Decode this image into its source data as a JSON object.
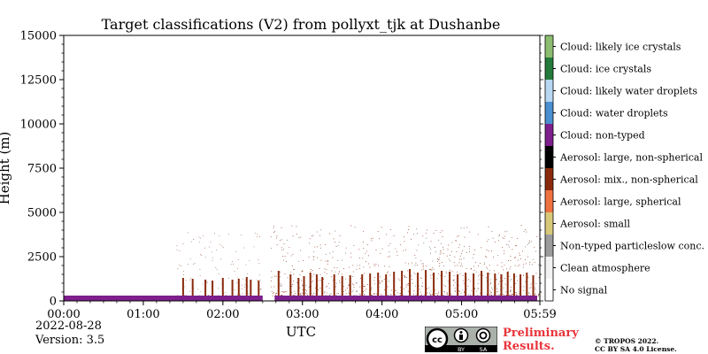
{
  "chart_data": {
    "type": "heatmap",
    "title": "Target classifications (V2) from pollyxt_tjk at Dushanbe",
    "xlabel": "UTC",
    "ylabel": "Height (m)",
    "xlim_hours": [
      0,
      5.9833
    ],
    "ylim": [
      0,
      15000
    ],
    "x_ticks": [
      {
        "value": 0,
        "label": "00:00"
      },
      {
        "value": 1,
        "label": "01:00"
      },
      {
        "value": 2,
        "label": "02:00"
      },
      {
        "value": 3,
        "label": "03:00"
      },
      {
        "value": 4,
        "label": "04:00"
      },
      {
        "value": 5,
        "label": "05:00"
      },
      {
        "value": 5.9833,
        "label": "05:59"
      }
    ],
    "y_ticks": [
      {
        "value": 0,
        "label": "0"
      },
      {
        "value": 2500,
        "label": "2500"
      },
      {
        "value": 5000,
        "label": "5000"
      },
      {
        "value": 7500,
        "label": "7500"
      },
      {
        "value": 10000,
        "label": "10000"
      },
      {
        "value": 12500,
        "label": "12500"
      },
      {
        "value": 15000,
        "label": "15000"
      }
    ],
    "classes": [
      {
        "label": "No signal",
        "color": "#ffffff"
      },
      {
        "label": "Clean atmosphere",
        "color": "#f2f2f2"
      },
      {
        "label": "Non-typed particleslow conc.",
        "color": "#9b9b9b"
      },
      {
        "label": "Aerosol: small",
        "color": "#d8c97a"
      },
      {
        "label": "Aerosol: large, spherical",
        "color": "#ee7240"
      },
      {
        "label": "Aerosol: mix., non-spherical",
        "color": "#8a2a0c"
      },
      {
        "label": "Aerosol: large, non-spherical",
        "color": "#000000"
      },
      {
        "label": "Cloud: non-typed",
        "color": "#7d1f8c"
      },
      {
        "label": "Cloud: water droplets",
        "color": "#4a8fd0"
      },
      {
        "label": "Cloud: likely water droplets",
        "color": "#b7d7f2"
      },
      {
        "label": "Cloud: ice crystals",
        "color": "#237a3a"
      },
      {
        "label": "Cloud: likely ice crystals",
        "color": "#8cbd70"
      }
    ],
    "layers": [
      {
        "class": "Cloud: non-typed",
        "from_hours": 0.0,
        "to_hours": 2.5,
        "base_m": 0,
        "top_m": 300
      },
      {
        "class": "Cloud: non-typed",
        "from_hours": 2.65,
        "to_hours": 5.95,
        "base_m": 0,
        "top_m": 300
      }
    ],
    "aerosol_columns": [
      {
        "class": "Aerosol: mix., non-spherical",
        "hours": 1.5,
        "top_m": 1300
      },
      {
        "class": "Aerosol: mix., non-spherical",
        "hours": 1.62,
        "top_m": 1250
      },
      {
        "class": "Aerosol: mix., non-spherical",
        "hours": 1.78,
        "top_m": 1200
      },
      {
        "class": "Aerosol: mix., non-spherical",
        "hours": 1.87,
        "top_m": 1150
      },
      {
        "class": "Aerosol: mix., non-spherical",
        "hours": 2.0,
        "top_m": 1300
      },
      {
        "class": "Aerosol: mix., non-spherical",
        "hours": 2.12,
        "top_m": 1200
      },
      {
        "class": "Aerosol: mix., non-spherical",
        "hours": 2.2,
        "top_m": 1250
      },
      {
        "class": "Aerosol: mix., non-spherical",
        "hours": 2.3,
        "top_m": 1350
      },
      {
        "class": "Aerosol: mix., non-spherical",
        "hours": 2.35,
        "top_m": 1200
      },
      {
        "class": "Aerosol: mix., non-spherical",
        "hours": 2.45,
        "top_m": 1150
      },
      {
        "class": "Aerosol: mix., non-spherical",
        "hours": 2.7,
        "top_m": 1700
      },
      {
        "class": "Aerosol: mix., non-spherical",
        "hours": 2.85,
        "top_m": 1500
      },
      {
        "class": "Aerosol: mix., non-spherical",
        "hours": 2.95,
        "top_m": 1300
      },
      {
        "class": "Aerosol: mix., non-spherical",
        "hours": 3.02,
        "top_m": 1400
      },
      {
        "class": "Aerosol: mix., non-spherical",
        "hours": 3.1,
        "top_m": 1600
      },
      {
        "class": "Aerosol: mix., non-spherical",
        "hours": 3.18,
        "top_m": 1500
      },
      {
        "class": "Aerosol: mix., non-spherical",
        "hours": 3.25,
        "top_m": 1350
      },
      {
        "class": "Aerosol: mix., non-spherical",
        "hours": 3.4,
        "top_m": 1500
      },
      {
        "class": "Aerosol: mix., non-spherical",
        "hours": 3.5,
        "top_m": 1400
      },
      {
        "class": "Aerosol: mix., non-spherical",
        "hours": 3.6,
        "top_m": 1450
      },
      {
        "class": "Aerosol: mix., non-spherical",
        "hours": 3.75,
        "top_m": 1500
      },
      {
        "class": "Aerosol: mix., non-spherical",
        "hours": 3.85,
        "top_m": 1550
      },
      {
        "class": "Aerosol: mix., non-spherical",
        "hours": 3.95,
        "top_m": 1600
      },
      {
        "class": "Aerosol: mix., non-spherical",
        "hours": 4.05,
        "top_m": 1500
      },
      {
        "class": "Aerosol: mix., non-spherical",
        "hours": 4.15,
        "top_m": 1650
      },
      {
        "class": "Aerosol: mix., non-spherical",
        "hours": 4.25,
        "top_m": 1700
      },
      {
        "class": "Aerosol: mix., non-spherical",
        "hours": 4.35,
        "top_m": 1800
      },
      {
        "class": "Aerosol: mix., non-spherical",
        "hours": 4.45,
        "top_m": 1600
      },
      {
        "class": "Aerosol: mix., non-spherical",
        "hours": 4.55,
        "top_m": 1750
      },
      {
        "class": "Aerosol: mix., non-spherical",
        "hours": 4.65,
        "top_m": 1600
      },
      {
        "class": "Aerosol: mix., non-spherical",
        "hours": 4.75,
        "top_m": 1700
      },
      {
        "class": "Aerosol: mix., non-spherical",
        "hours": 4.85,
        "top_m": 1650
      },
      {
        "class": "Aerosol: mix., non-spherical",
        "hours": 4.95,
        "top_m": 1500
      },
      {
        "class": "Aerosol: mix., non-spherical",
        "hours": 5.05,
        "top_m": 1600
      },
      {
        "class": "Aerosol: mix., non-spherical",
        "hours": 5.15,
        "top_m": 1550
      },
      {
        "class": "Aerosol: mix., non-spherical",
        "hours": 5.25,
        "top_m": 1700
      },
      {
        "class": "Aerosol: mix., non-spherical",
        "hours": 5.33,
        "top_m": 1600
      },
      {
        "class": "Aerosol: mix., non-spherical",
        "hours": 5.42,
        "top_m": 1550
      },
      {
        "class": "Aerosol: mix., non-spherical",
        "hours": 5.5,
        "top_m": 1500
      },
      {
        "class": "Aerosol: mix., non-spherical",
        "hours": 5.58,
        "top_m": 1650
      },
      {
        "class": "Aerosol: mix., non-spherical",
        "hours": 5.66,
        "top_m": 1550
      },
      {
        "class": "Aerosol: mix., non-spherical",
        "hours": 5.74,
        "top_m": 1500
      },
      {
        "class": "Aerosol: mix., non-spherical",
        "hours": 5.82,
        "top_m": 1600
      },
      {
        "class": "Aerosol: mix., non-spherical",
        "hours": 5.9,
        "top_m": 1450
      }
    ],
    "grid": false,
    "legend_position": "right colorbar"
  },
  "footer": {
    "date": "2022-08-28",
    "version": "Version: 3.5",
    "preliminary_line1": "Preliminary",
    "preliminary_line2": "Results.",
    "copyright_line1": "© TROPOS 2022.",
    "copyright_line2": "CC BY SA 4.0 License.",
    "license_badge": {
      "cc": "cc",
      "by": "BY",
      "sa": "SA"
    }
  },
  "colors": {
    "preliminary_text": "#e8343a",
    "badge_bg": "#aab0aa",
    "badge_dark": "#000000"
  }
}
